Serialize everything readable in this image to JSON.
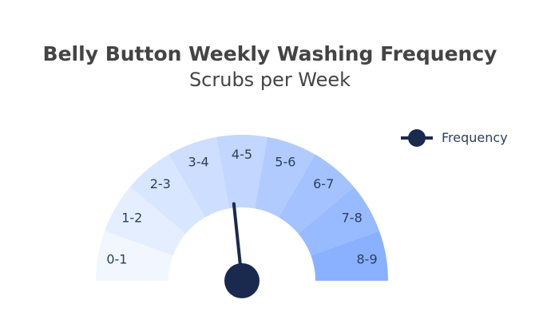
{
  "chart_data": {
    "type": "gauge",
    "title": "Belly Button Weekly Washing Frequency",
    "subtitle": "Scrubs per Week",
    "range": [
      0,
      9
    ],
    "categories": [
      "0-1",
      "1-2",
      "2-3",
      "3-4",
      "4-5",
      "5-6",
      "6-7",
      "7-8",
      "8-9"
    ],
    "segment_colors": [
      "#f2f6ff",
      "#e5eeff",
      "#d9e6ff",
      "#cedeff",
      "#c2d6ff",
      "#b2cbff",
      "#a4c2ff",
      "#98baff",
      "#8ab1ff"
    ],
    "series": [
      {
        "name": "Frequency",
        "value": 4.2,
        "color": "#1a2a4e"
      }
    ],
    "legend_position": "top-right",
    "grid": false
  }
}
